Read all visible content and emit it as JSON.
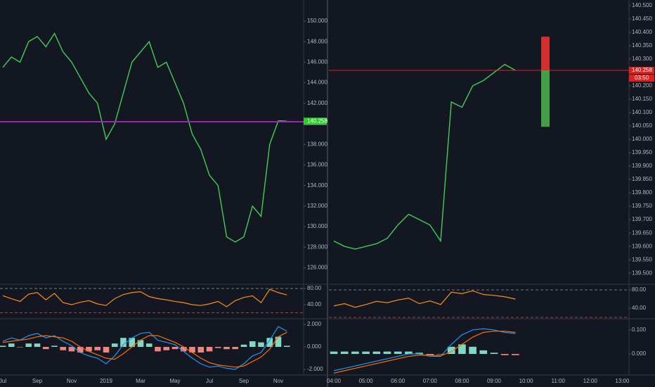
{
  "chart_data": [
    {
      "type": "line",
      "categories": [
        "Jul",
        null,
        null,
        null,
        "Sep",
        null,
        null,
        null,
        "Nov",
        null,
        null,
        null,
        "2019",
        null,
        null,
        null,
        "Mar",
        null,
        null,
        null,
        "May",
        null,
        null,
        null,
        "Jul",
        null,
        null,
        null,
        "Sep",
        null,
        null,
        null,
        "Nov",
        null
      ],
      "values": [
        145.5,
        146.5,
        146,
        148,
        148.5,
        147.5,
        148.8,
        147,
        146,
        144.5,
        143,
        142,
        138.5,
        140,
        143,
        146,
        147,
        148,
        145.5,
        146,
        144,
        142,
        139,
        137.5,
        135,
        134,
        129,
        128.5,
        129,
        132,
        131,
        138,
        140.3,
        140.26
      ],
      "color": "#3fcf55",
      "ylim": [
        124.46,
        152.05
      ],
      "yticks": [
        {
          "value": 150,
          "label": "150.000"
        },
        {
          "value": 148,
          "label": "148.000"
        },
        {
          "value": 146,
          "label": "146.000"
        },
        {
          "value": 144,
          "label": "144.000"
        },
        {
          "value": 142,
          "label": "142.000"
        },
        {
          "value": 138,
          "label": "138.000"
        },
        {
          "value": 136,
          "label": "136.000"
        },
        {
          "value": 134,
          "label": "134.000"
        },
        {
          "value": 132,
          "label": "132.000"
        },
        {
          "value": 130,
          "label": "130.000"
        },
        {
          "value": 128,
          "label": "128.000"
        },
        {
          "value": 126,
          "label": "126.000"
        }
      ],
      "levels": [
        {
          "value": 140.21,
          "label": "140.210",
          "color": "#9c27b0",
          "line": true
        },
        {
          "value": 140.258,
          "label": "140.258",
          "color": "#26d026",
          "line": false
        }
      ],
      "rsi": {
        "values": [
          62,
          55,
          48,
          66,
          70,
          52,
          68,
          45,
          40,
          46,
          50,
          42,
          38,
          55,
          65,
          70,
          72,
          60,
          55,
          52,
          48,
          45,
          40,
          38,
          42,
          48,
          35,
          50,
          58,
          62,
          45,
          78,
          70,
          64
        ],
        "color": "#ff8c1a",
        "ylim": [
          7,
          88.7
        ],
        "yticks": [
          {
            "value": 80,
            "label": "80.00"
          },
          {
            "value": 40,
            "label": "40.00"
          }
        ],
        "bands": [
          80,
          20
        ]
      },
      "macd": {
        "macd": [
          0.5,
          0.8,
          0.6,
          1.0,
          1.2,
          0.8,
          1.0,
          0.5,
          0.1,
          -0.5,
          -0.8,
          -1.0,
          -1.5,
          -0.8,
          0.2,
          0.8,
          1.2,
          1.3,
          0.6,
          0.4,
          0.2,
          -0.4,
          -1.0,
          -1.5,
          -1.8,
          -1.7,
          -1.9,
          -2.0,
          -1.5,
          -0.8,
          -0.5,
          0.6,
          1.8,
          1.4
        ],
        "signal": [
          0.4,
          0.5,
          0.6,
          0.7,
          0.9,
          1.0,
          0.9,
          0.8,
          0.5,
          0.0,
          -0.4,
          -0.7,
          -1.0,
          -1.1,
          -0.6,
          0.0,
          0.6,
          1.0,
          1.0,
          0.7,
          0.4,
          0.0,
          -0.5,
          -1.0,
          -1.4,
          -1.6,
          -1.7,
          -1.8,
          -1.7,
          -1.3,
          -0.9,
          -0.2,
          0.9,
          1.3
        ],
        "hist": [
          0.1,
          0.3,
          0,
          0.3,
          0.3,
          -0.2,
          0.1,
          -0.3,
          -0.4,
          -0.5,
          -0.4,
          -0.3,
          -0.5,
          0.3,
          0.8,
          0.8,
          0.6,
          0.3,
          -0.4,
          -0.3,
          -0.2,
          -0.4,
          -0.5,
          -0.5,
          -0.4,
          -0.1,
          -0.2,
          -0.2,
          0.2,
          0.5,
          0.4,
          0.8,
          0.9,
          0.1
        ],
        "macd_color": "#2196f3",
        "signal_color": "#ff6d00",
        "up_color": "#7fd8c3",
        "down_color": "#f0847e",
        "ylim": [
          -2.5,
          2.375
        ],
        "yticks": [
          {
            "value": 2,
            "label": "2.000"
          },
          {
            "value": 0,
            "label": "0.000"
          },
          {
            "value": -2,
            "label": "-2.000"
          }
        ]
      }
    },
    {
      "type": "line",
      "categories": [
        "04:00",
        null,
        null,
        "05:00",
        null,
        null,
        "06:00",
        null,
        null,
        "07:00",
        null,
        null,
        "08:00",
        null,
        null,
        "09:00",
        null,
        null,
        "10:00",
        null,
        null,
        "11:00",
        null,
        null,
        "12:00",
        null,
        null,
        "13:00"
      ],
      "values": [
        139.62,
        139.6,
        139.59,
        139.6,
        139.61,
        139.63,
        139.68,
        139.72,
        139.7,
        139.68,
        139.62,
        140.14,
        140.12,
        140.2,
        140.22,
        140.25,
        140.28,
        140.258,
        null,
        null,
        null,
        null,
        null,
        null,
        null,
        null,
        null,
        null
      ],
      "color": "#3fcf55",
      "ylim": [
        139.461,
        140.521
      ],
      "yticks": [
        {
          "value": 140.5,
          "label": "140.500"
        },
        {
          "value": 140.45,
          "label": "140.450"
        },
        {
          "value": 140.4,
          "label": "140.400"
        },
        {
          "value": 140.35,
          "label": "140.350"
        },
        {
          "value": 140.3,
          "label": "140.300"
        },
        {
          "value": 140.2,
          "label": "140.200"
        },
        {
          "value": 140.15,
          "label": "140.150"
        },
        {
          "value": 140.1,
          "label": "140.100"
        },
        {
          "value": 140.05,
          "label": "140.050"
        },
        {
          "value": 140,
          "label": "140.000"
        },
        {
          "value": 139.95,
          "label": "139.950"
        },
        {
          "value": 139.9,
          "label": "139.900"
        },
        {
          "value": 139.85,
          "label": "139.850"
        },
        {
          "value": 139.8,
          "label": "139.800"
        },
        {
          "value": 139.75,
          "label": "139.750"
        },
        {
          "value": 139.7,
          "label": "139.700"
        },
        {
          "value": 139.65,
          "label": "139.650"
        },
        {
          "value": 139.6,
          "label": "139.600"
        },
        {
          "value": 139.55,
          "label": "139.550"
        },
        {
          "value": 139.5,
          "label": "139.500"
        }
      ],
      "levels": [
        {
          "value": 140.258,
          "label": "140.258",
          "color": "#e0201e",
          "line": true
        }
      ],
      "countdown": "03:50",
      "position": {
        "stop": 140.384,
        "entry": 140.258,
        "target": 140.047,
        "stop_color": "#d32f2f",
        "target_color": "#43a047"
      },
      "rsi": {
        "values": [
          45,
          50,
          42,
          48,
          55,
          52,
          58,
          62,
          50,
          56,
          48,
          75,
          72,
          78,
          70,
          68,
          65,
          60,
          null,
          null,
          null,
          null,
          null,
          null,
          null,
          null,
          null,
          null
        ],
        "color": "#ff8c1a",
        "ylim": [
          18.5,
          90.8
        ],
        "yticks": [
          {
            "value": 80,
            "label": "80.00"
          },
          {
            "value": 40,
            "label": "40.00"
          }
        ],
        "bands": [
          80,
          20
        ]
      },
      "macd": {
        "macd": [
          -0.07,
          -0.06,
          -0.05,
          -0.04,
          -0.03,
          -0.02,
          -0.01,
          0.0,
          0.0,
          -0.01,
          -0.01,
          0.04,
          0.08,
          0.1,
          0.105,
          0.1,
          0.09,
          0.085,
          null,
          null,
          null,
          null,
          null,
          null,
          null,
          null,
          null,
          null
        ],
        "signal": [
          -0.08,
          -0.07,
          -0.06,
          -0.05,
          -0.04,
          -0.03,
          -0.02,
          -0.01,
          -0.005,
          -0.005,
          -0.008,
          0.01,
          0.04,
          0.07,
          0.09,
          0.095,
          0.095,
          0.09,
          null,
          null,
          null,
          null,
          null,
          null,
          null,
          null,
          null,
          null
        ],
        "hist": [
          0.01,
          0.01,
          0.01,
          0.01,
          0.01,
          0.01,
          0.01,
          0.01,
          0.005,
          -0.005,
          -0.002,
          0.03,
          0.04,
          0.03,
          0.015,
          0.005,
          -0.005,
          -0.005,
          null,
          null,
          null,
          null,
          null,
          null,
          null,
          null,
          null,
          null
        ],
        "macd_color": "#2196f3",
        "signal_color": "#ff6d00",
        "up_color": "#7fd8c3",
        "down_color": "#f0847e",
        "ylim": [
          -0.088,
          0.141
        ],
        "yticks": [
          {
            "value": 0.1,
            "label": "0.100"
          },
          {
            "value": 0,
            "label": "0.000"
          }
        ]
      }
    }
  ]
}
